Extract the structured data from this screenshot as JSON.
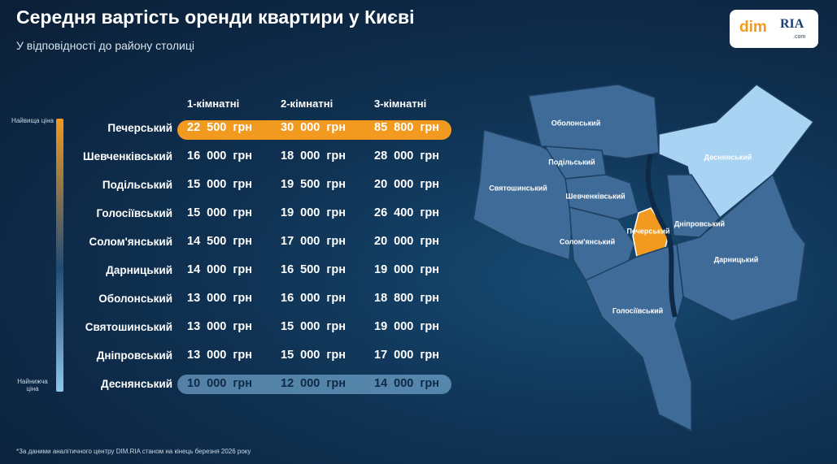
{
  "header": {
    "title": "Середня вартість оренди квартири у Києві",
    "subtitle": "У відповідності до району столиці"
  },
  "logo": {
    "left": "dim",
    "right": "RIA",
    "small": ".com"
  },
  "scale": {
    "top": "Найвища ціна",
    "bottom": "Найнижча ціна"
  },
  "table": {
    "columns": [
      "1-кімнатні",
      "2-кімнатні",
      "3-кімнатні"
    ],
    "rows": [
      [
        "Печерський",
        "22 500 грн",
        "30 000 грн",
        "85 800 грн"
      ],
      [
        "Шевченківський",
        "16 000 грн",
        "18 000 грн",
        "28 000 грн"
      ],
      [
        "Подільський",
        "15 000 грн",
        "19 500 грн",
        "20 000 грн"
      ],
      [
        "Голосіївський",
        "15 000 грн",
        "19 000 грн",
        "26 400 грн"
      ],
      [
        "Солом'янський",
        "14 500 грн",
        "17 000 грн",
        "20 000 грн"
      ],
      [
        "Дарницький",
        "14 000 грн",
        "16 500 грн",
        "19 000 грн"
      ],
      [
        "Оболонський",
        "13 000 грн",
        "16 000 грн",
        "18 800 грн"
      ],
      [
        "Святошинський",
        "13 000 грн",
        "15 000 грн",
        "19 000 грн"
      ],
      [
        "Дніпровський",
        "13 000 грн",
        "15 000 грн",
        "17 000 грн"
      ],
      [
        "Деснянський",
        "10 000 грн",
        "12 000 грн",
        "14 000 грн"
      ]
    ]
  },
  "map": {
    "labels": [
      "Оболонський",
      "Деснянський",
      "Подільський",
      "Святошинський",
      "Шевченківський",
      "Дніпровський",
      "Печерський",
      "Солом'янський",
      "Дарницький",
      "Голосіївський"
    ]
  },
  "footnote": "*За даними аналітичного центру DIM.RIA станом на кінець березня 2026 року"
}
